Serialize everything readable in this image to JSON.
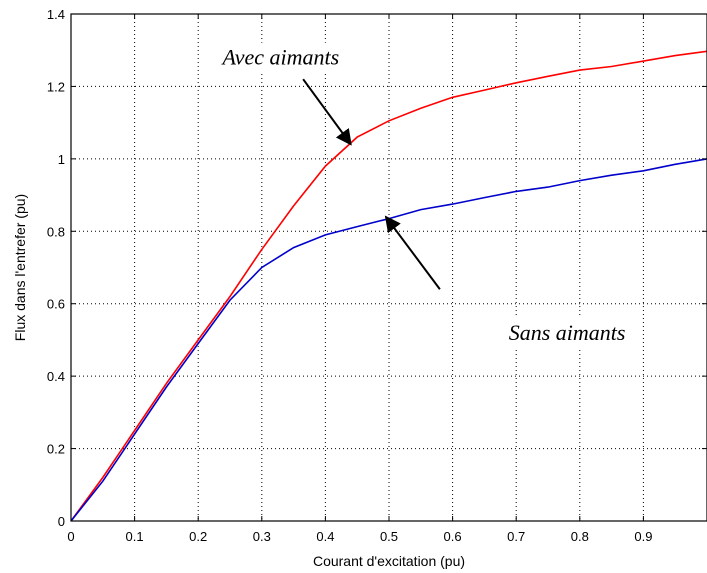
{
  "chart_data": {
    "type": "line",
    "xlabel": "Courant d'excitation (pu)",
    "ylabel": "Flux dans l'entrefer (pu)",
    "xlim": [
      0,
      1
    ],
    "ylim": [
      0,
      1.4
    ],
    "xticks": [
      "0",
      "0.1",
      "0.2",
      "0.3",
      "0.4",
      "0.5",
      "0.6",
      "0.7",
      "0.8",
      "0.9"
    ],
    "yticks": [
      "0",
      "0.2",
      "0.4",
      "0.6",
      "0.8",
      "1",
      "1.2",
      "1.4"
    ],
    "grid": true,
    "series": [
      {
        "name": "Avec aimants",
        "color": "#ff0000",
        "x": [
          0,
          0.05,
          0.1,
          0.15,
          0.2,
          0.25,
          0.3,
          0.35,
          0.4,
          0.45,
          0.5,
          0.55,
          0.6,
          0.65,
          0.7,
          0.75,
          0.8,
          0.85,
          0.9,
          0.95,
          1.0
        ],
        "y": [
          0,
          0.12,
          0.25,
          0.38,
          0.5,
          0.62,
          0.75,
          0.87,
          0.98,
          1.06,
          1.105,
          1.14,
          1.17,
          1.19,
          1.21,
          1.228,
          1.245,
          1.255,
          1.27,
          1.285,
          1.297
        ]
      },
      {
        "name": "Sans aimants",
        "color": "#0000cc",
        "x": [
          0,
          0.05,
          0.1,
          0.15,
          0.2,
          0.25,
          0.3,
          0.35,
          0.4,
          0.45,
          0.5,
          0.55,
          0.6,
          0.65,
          0.7,
          0.75,
          0.8,
          0.85,
          0.9,
          0.95,
          1.0
        ],
        "y": [
          0,
          0.11,
          0.24,
          0.37,
          0.49,
          0.61,
          0.7,
          0.755,
          0.79,
          0.813,
          0.835,
          0.86,
          0.875,
          0.893,
          0.91,
          0.922,
          0.94,
          0.955,
          0.967,
          0.985,
          1.0
        ]
      }
    ],
    "annotations": [
      {
        "text": "Avec aimants",
        "text_x": 0.33,
        "text_y": 1.26,
        "arrow_from": [
          0.365,
          1.22
        ],
        "arrow_to": [
          0.44,
          1.04
        ]
      },
      {
        "text": "Sans aimants",
        "text_x": 0.78,
        "text_y": 0.5,
        "arrow_from": [
          0.58,
          0.64
        ],
        "arrow_to": [
          0.495,
          0.84
        ]
      }
    ]
  }
}
